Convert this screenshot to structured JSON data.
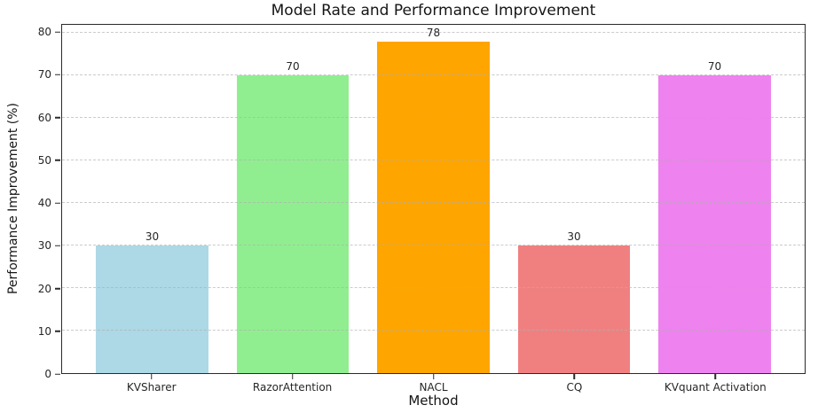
{
  "chart_data": {
    "type": "bar",
    "title": "Model Rate and Performance Improvement",
    "xlabel": "Method",
    "ylabel": "Performance Improvement (%)",
    "categories": [
      "KVSharer",
      "RazorAttention",
      "NACL",
      "CQ",
      "KVquant Activation"
    ],
    "values": [
      30,
      70,
      78,
      30,
      70
    ],
    "value_labels": [
      "30",
      "70",
      "78",
      "30",
      "70"
    ],
    "bar_colors": [
      "#add8e6",
      "#90ee90",
      "#ffa500",
      "#f08080",
      "#ee82ee"
    ],
    "yticks": [
      0,
      10,
      20,
      30,
      40,
      50,
      60,
      70,
      80
    ],
    "ylim": [
      0,
      81.9
    ],
    "grid": "y-axis dashed, drawn over bars",
    "legend_position": "none",
    "colors": {
      "background": "#ffffff",
      "spine": "#2a2a2a",
      "gridline": "#afafaf",
      "text": "#1c1c1c"
    }
  }
}
